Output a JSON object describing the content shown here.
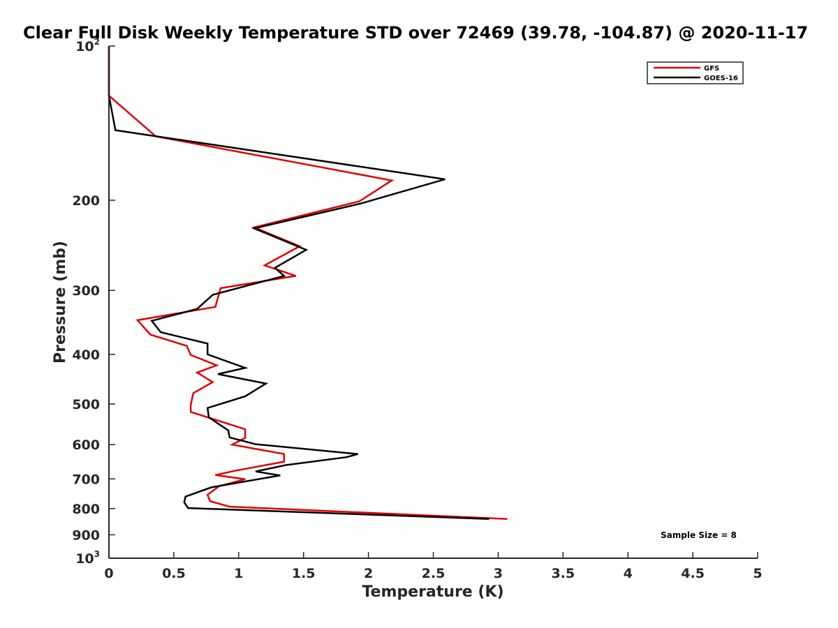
{
  "chart_data": {
    "type": "line",
    "title": "Clear Full Disk Weekly Temperature STD over 72469 (39.78, -104.87) @ 2020-11-17",
    "xlabel": "Temperature (K)",
    "ylabel": "Pressure (mb)",
    "xlim": [
      0,
      5
    ],
    "ylim": [
      100,
      1000
    ],
    "y_scale": "log",
    "y_reversed": true,
    "grid": false,
    "legend_position": "top-right",
    "x_ticks": [
      "0",
      "0.5",
      "1",
      "1.5",
      "2",
      "2.5",
      "3",
      "3.5",
      "4",
      "4.5",
      "5"
    ],
    "y_ticks": [
      {
        "value": 100,
        "base": "10",
        "exp": "2"
      },
      {
        "value": 200,
        "label": "200"
      },
      {
        "value": 300,
        "label": "300"
      },
      {
        "value": 400,
        "label": "400"
      },
      {
        "value": 500,
        "label": "500"
      },
      {
        "value": 600,
        "label": "600"
      },
      {
        "value": 700,
        "label": "700"
      },
      {
        "value": 800,
        "label": "800"
      },
      {
        "value": 900,
        "label": "900"
      },
      {
        "value": 1000,
        "base": "10",
        "exp": "3"
      }
    ],
    "series": [
      {
        "name": "GFS",
        "color": "#e00000",
        "points": [
          [
            0,
            100
          ],
          [
            0,
            125
          ],
          [
            0.36,
            150
          ],
          [
            2.18,
            183
          ],
          [
            1.93,
            201
          ],
          [
            1.12,
            226
          ],
          [
            1.47,
            246
          ],
          [
            1.2,
            268
          ],
          [
            1.44,
            281
          ],
          [
            0.86,
            297
          ],
          [
            0.82,
            323
          ],
          [
            0.22,
            343
          ],
          [
            0.32,
            366
          ],
          [
            0.6,
            385
          ],
          [
            0.63,
            401
          ],
          [
            0.83,
            420
          ],
          [
            0.68,
            434
          ],
          [
            0.8,
            453
          ],
          [
            0.65,
            476
          ],
          [
            0.63,
            502
          ],
          [
            0.63,
            518
          ],
          [
            1.05,
            560
          ],
          [
            1.05,
            582
          ],
          [
            0.95,
            600
          ],
          [
            1.35,
            626
          ],
          [
            1.35,
            648
          ],
          [
            0.97,
            675
          ],
          [
            0.82,
            688
          ],
          [
            1.05,
            701
          ],
          [
            0.85,
            723
          ],
          [
            0.76,
            752
          ],
          [
            0.78,
            774
          ],
          [
            0.93,
            793
          ],
          [
            3.07,
            838
          ]
        ]
      },
      {
        "name": "GOES-16",
        "color": "#000000",
        "points": [
          [
            0,
            100
          ],
          [
            0,
            125
          ],
          [
            0.05,
            146
          ],
          [
            2.59,
            182
          ],
          [
            1.94,
            203
          ],
          [
            1.12,
            227
          ],
          [
            1.52,
            250
          ],
          [
            1.28,
            271
          ],
          [
            1.35,
            281
          ],
          [
            0.8,
            306
          ],
          [
            0.68,
            326
          ],
          [
            0.33,
            344
          ],
          [
            0.4,
            362
          ],
          [
            0.76,
            381
          ],
          [
            0.76,
            400
          ],
          [
            1.05,
            425
          ],
          [
            0.84,
            437
          ],
          [
            1.21,
            456
          ],
          [
            1.05,
            483
          ],
          [
            0.76,
            509
          ],
          [
            0.77,
            531
          ],
          [
            0.92,
            563
          ],
          [
            0.93,
            581
          ],
          [
            1.13,
            599
          ],
          [
            1.92,
            626
          ],
          [
            1.83,
            635
          ],
          [
            1.36,
            658
          ],
          [
            1.13,
            677
          ],
          [
            1.32,
            689
          ],
          [
            0.79,
            727
          ],
          [
            0.59,
            758
          ],
          [
            0.58,
            778
          ],
          [
            0.61,
            798
          ],
          [
            2.93,
            838
          ]
        ]
      }
    ],
    "annotations": [
      {
        "text": "Sample Size = 8",
        "position": "bottom-right"
      }
    ]
  }
}
